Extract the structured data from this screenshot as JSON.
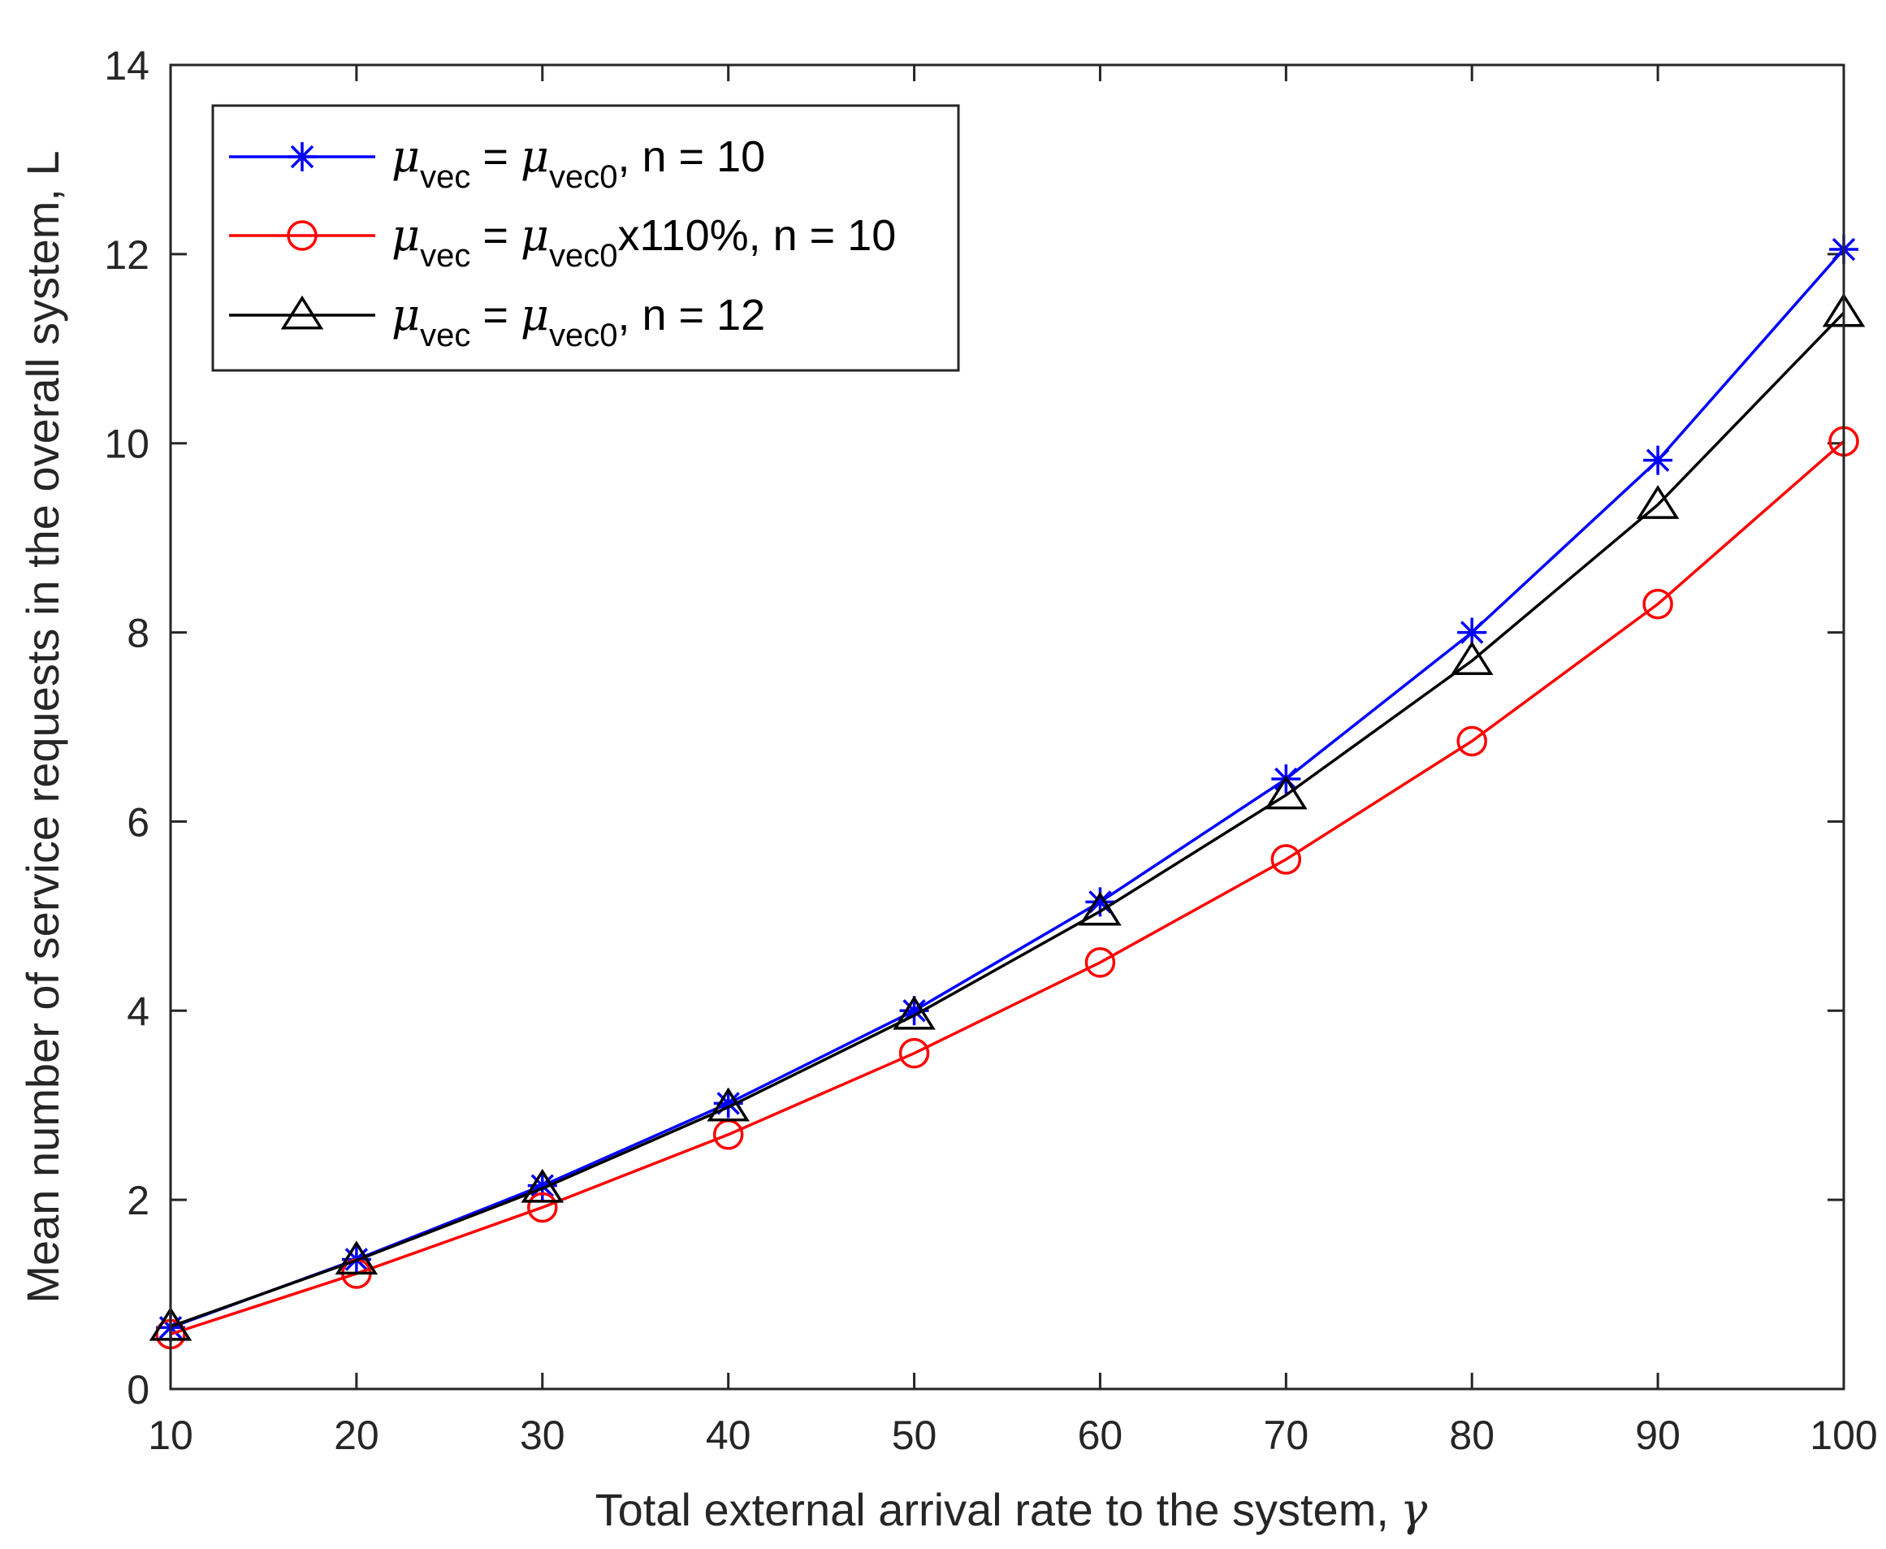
{
  "chart_data": {
    "type": "line",
    "title": "",
    "xlabel": "Total external arrival rate to the system,",
    "xlabel_symbol": "γ",
    "ylabel": "Mean number of service requests in the overall system, L",
    "xlim": [
      10,
      100
    ],
    "ylim": [
      0,
      14
    ],
    "x_ticks": [
      10,
      20,
      30,
      40,
      50,
      60,
      70,
      80,
      90,
      100
    ],
    "y_ticks": [
      0,
      2,
      4,
      6,
      8,
      10,
      12,
      14
    ],
    "grid": false,
    "legend_position": "top-left",
    "x": [
      10,
      20,
      30,
      40,
      50,
      60,
      70,
      80,
      90,
      100
    ],
    "series": [
      {
        "legend": {
          "mu": "μ",
          "sub1": "vec",
          "eq": " = ",
          "sub2": "vec0",
          "rest": ", n = 10"
        },
        "color": "#0000ff",
        "marker": "asterisk",
        "values": [
          0.65,
          1.37,
          2.15,
          3.02,
          4.0,
          5.15,
          6.45,
          8.0,
          9.82,
          12.05
        ]
      },
      {
        "legend": {
          "mu": "μ",
          "sub1": "vec",
          "eq": " = ",
          "sub2": "vec0",
          "rest": "x110%, n = 10"
        },
        "color": "#ff0000",
        "marker": "circle",
        "values": [
          0.58,
          1.22,
          1.92,
          2.69,
          3.55,
          4.51,
          5.6,
          6.85,
          8.3,
          10.02
        ]
      },
      {
        "legend": {
          "mu": "μ",
          "sub1": "vec",
          "eq": " = ",
          "sub2": "vec0",
          "rest": ", n = 12"
        },
        "color": "#000000",
        "marker": "triangle",
        "values": [
          0.66,
          1.36,
          2.12,
          2.98,
          3.95,
          5.05,
          6.28,
          7.7,
          9.35,
          11.38
        ]
      }
    ]
  }
}
